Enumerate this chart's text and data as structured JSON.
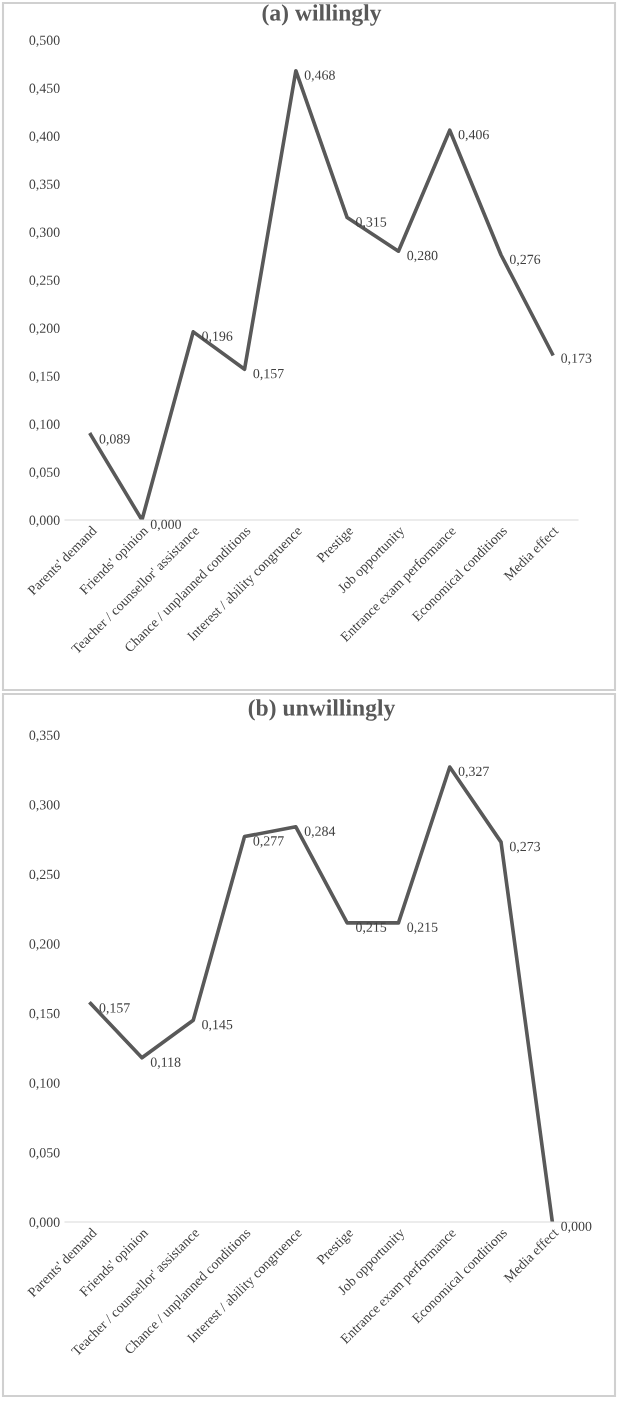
{
  "chart_data": [
    {
      "type": "line",
      "title": "(a) willingly",
      "categories": [
        "Parents' demand",
        "Friends' opinion",
        "Teacher / counsellor' assistance",
        "Chance / unplanned conditions",
        "Interest / ability congruence",
        "Prestige",
        "Job opportunity",
        "Entrance exam performance",
        "Economical conditions",
        "Media effect"
      ],
      "series": [
        {
          "color": "#595959",
          "values": [
            0.089,
            0.0,
            0.196,
            0.157,
            0.468,
            0.315,
            0.28,
            0.406,
            0.276,
            0.173
          ],
          "value_labels": [
            "0,089",
            "0,000",
            "0,196",
            "0,157",
            "0,468",
            "0,315",
            "0,280",
            "0,406",
            "0,276",
            "0,173"
          ]
        }
      ],
      "ylim": [
        0,
        0.5
      ],
      "yticks": [
        {
          "value": 0,
          "label": "0,000"
        },
        {
          "value": 0.05,
          "label": "0,050"
        },
        {
          "value": 0.1,
          "label": "0,100"
        },
        {
          "value": 0.15,
          "label": "0,150"
        },
        {
          "value": 0.2,
          "label": "0,200"
        },
        {
          "value": 0.25,
          "label": "0,250"
        },
        {
          "value": 0.3,
          "label": "0,300"
        },
        {
          "value": 0.35,
          "label": "0,350"
        },
        {
          "value": 0.4,
          "label": "0,400"
        },
        {
          "value": 0.45,
          "label": "0,450"
        },
        {
          "value": 0.5,
          "label": "0,500"
        }
      ],
      "marker": "none",
      "line_style": "solid"
    },
    {
      "type": "line",
      "title": "(b) unwillingly",
      "categories": [
        "Parents' demand",
        "Friends' opinion",
        "Teacher / counsellor' assistance",
        "Chance / unplanned conditions",
        "Interest / ability congruence",
        "Prestige",
        "Job opportunity",
        "Entrance exam performance",
        "Economical conditions",
        "Media effect"
      ],
      "series": [
        {
          "color": "#595959",
          "values": [
            0.157,
            0.118,
            0.145,
            0.277,
            0.284,
            0.215,
            0.215,
            0.327,
            0.273,
            0.0
          ],
          "value_labels": [
            "0,157",
            "0,118",
            "0,145",
            "0,277",
            "0,284",
            "0,215",
            "0,215",
            "0,327",
            "0,273",
            "0,000"
          ]
        }
      ],
      "ylim": [
        0,
        0.35
      ],
      "yticks": [
        {
          "value": 0,
          "label": "0,000"
        },
        {
          "value": 0.05,
          "label": "0,050"
        },
        {
          "value": 0.1,
          "label": "0,100"
        },
        {
          "value": 0.15,
          "label": "0,150"
        },
        {
          "value": 0.2,
          "label": "0,200"
        },
        {
          "value": 0.25,
          "label": "0,250"
        },
        {
          "value": 0.3,
          "label": "0,300"
        },
        {
          "value": 0.35,
          "label": "0,350"
        }
      ],
      "marker": "none",
      "line_style": "solid"
    }
  ]
}
